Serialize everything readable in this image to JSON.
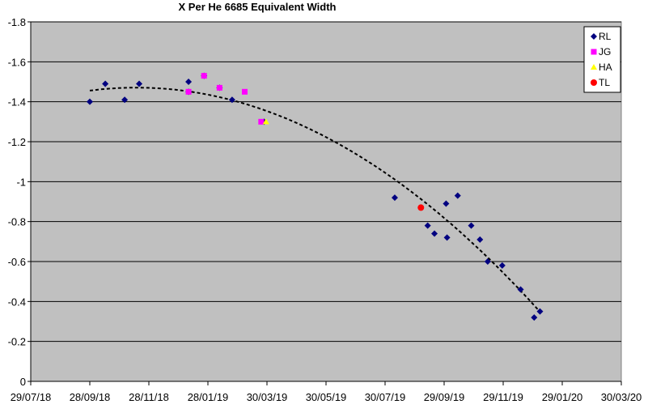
{
  "chart_data": {
    "type": "scatter",
    "title": "X Per He 6685 Equivalent Width",
    "xlabel": "",
    "ylabel": "",
    "x_axis": {
      "type": "date",
      "min": "2018-07-29",
      "max": "2020-03-30",
      "tick_labels": [
        "29/07/18",
        "28/09/18",
        "28/11/18",
        "28/01/19",
        "30/03/19",
        "30/05/19",
        "30/07/19",
        "29/09/19",
        "29/11/19",
        "29/01/20",
        "30/03/20"
      ]
    },
    "y_axis": {
      "min": -1.8,
      "max": 0,
      "reversed": true,
      "tick_labels": [
        "-1.8",
        "-1.6",
        "-1.4",
        "-1.2",
        "-1",
        "-0.8",
        "-0.6",
        "-0.4",
        "-0.2",
        "0"
      ],
      "gridlines": true
    },
    "legend": "top-right",
    "plot_background": "#C0C0C0",
    "series": [
      {
        "name": "RL",
        "marker": "diamond",
        "color": "#000080",
        "points": [
          [
            "2018-09-28",
            -1.4
          ],
          [
            "2018-10-14",
            -1.49
          ],
          [
            "2018-11-03",
            -1.41
          ],
          [
            "2018-11-18",
            -1.49
          ],
          [
            "2019-01-08",
            -1.5
          ],
          [
            "2019-01-08",
            -1.45
          ],
          [
            "2019-01-24",
            -1.53
          ],
          [
            "2019-02-09",
            -1.47
          ],
          [
            "2019-02-22",
            -1.41
          ],
          [
            "2019-03-27",
            -1.3
          ],
          [
            "2019-08-09",
            -0.92
          ],
          [
            "2019-09-12",
            -0.78
          ],
          [
            "2019-09-19",
            -0.74
          ],
          [
            "2019-10-01",
            -0.89
          ],
          [
            "2019-10-02",
            -0.72
          ],
          [
            "2019-10-13",
            -0.93
          ],
          [
            "2019-10-27",
            -0.78
          ],
          [
            "2019-11-05",
            -0.71
          ],
          [
            "2019-11-13",
            -0.6
          ],
          [
            "2019-11-28",
            -0.58
          ],
          [
            "2019-12-17",
            -0.46
          ],
          [
            "2019-12-31",
            -0.32
          ],
          [
            "2020-01-06",
            -0.35
          ]
        ]
      },
      {
        "name": "JG",
        "marker": "square",
        "color": "#FF00FF",
        "points": [
          [
            "2019-01-08",
            -1.45
          ],
          [
            "2019-01-24",
            -1.53
          ],
          [
            "2019-02-09",
            -1.47
          ],
          [
            "2019-03-07",
            -1.45
          ],
          [
            "2019-03-24",
            -1.3
          ]
        ]
      },
      {
        "name": "HA",
        "marker": "triangle",
        "color": "#FFFF00",
        "points": [
          [
            "2019-03-29",
            -1.3
          ]
        ]
      },
      {
        "name": "TL",
        "marker": "circle",
        "color": "#FF0000",
        "points": [
          [
            "2019-09-05",
            -0.87
          ]
        ]
      }
    ],
    "trendline": {
      "series": "RL",
      "type": "polynomial",
      "order": 2,
      "style": "dashed",
      "color": "#000000"
    }
  }
}
